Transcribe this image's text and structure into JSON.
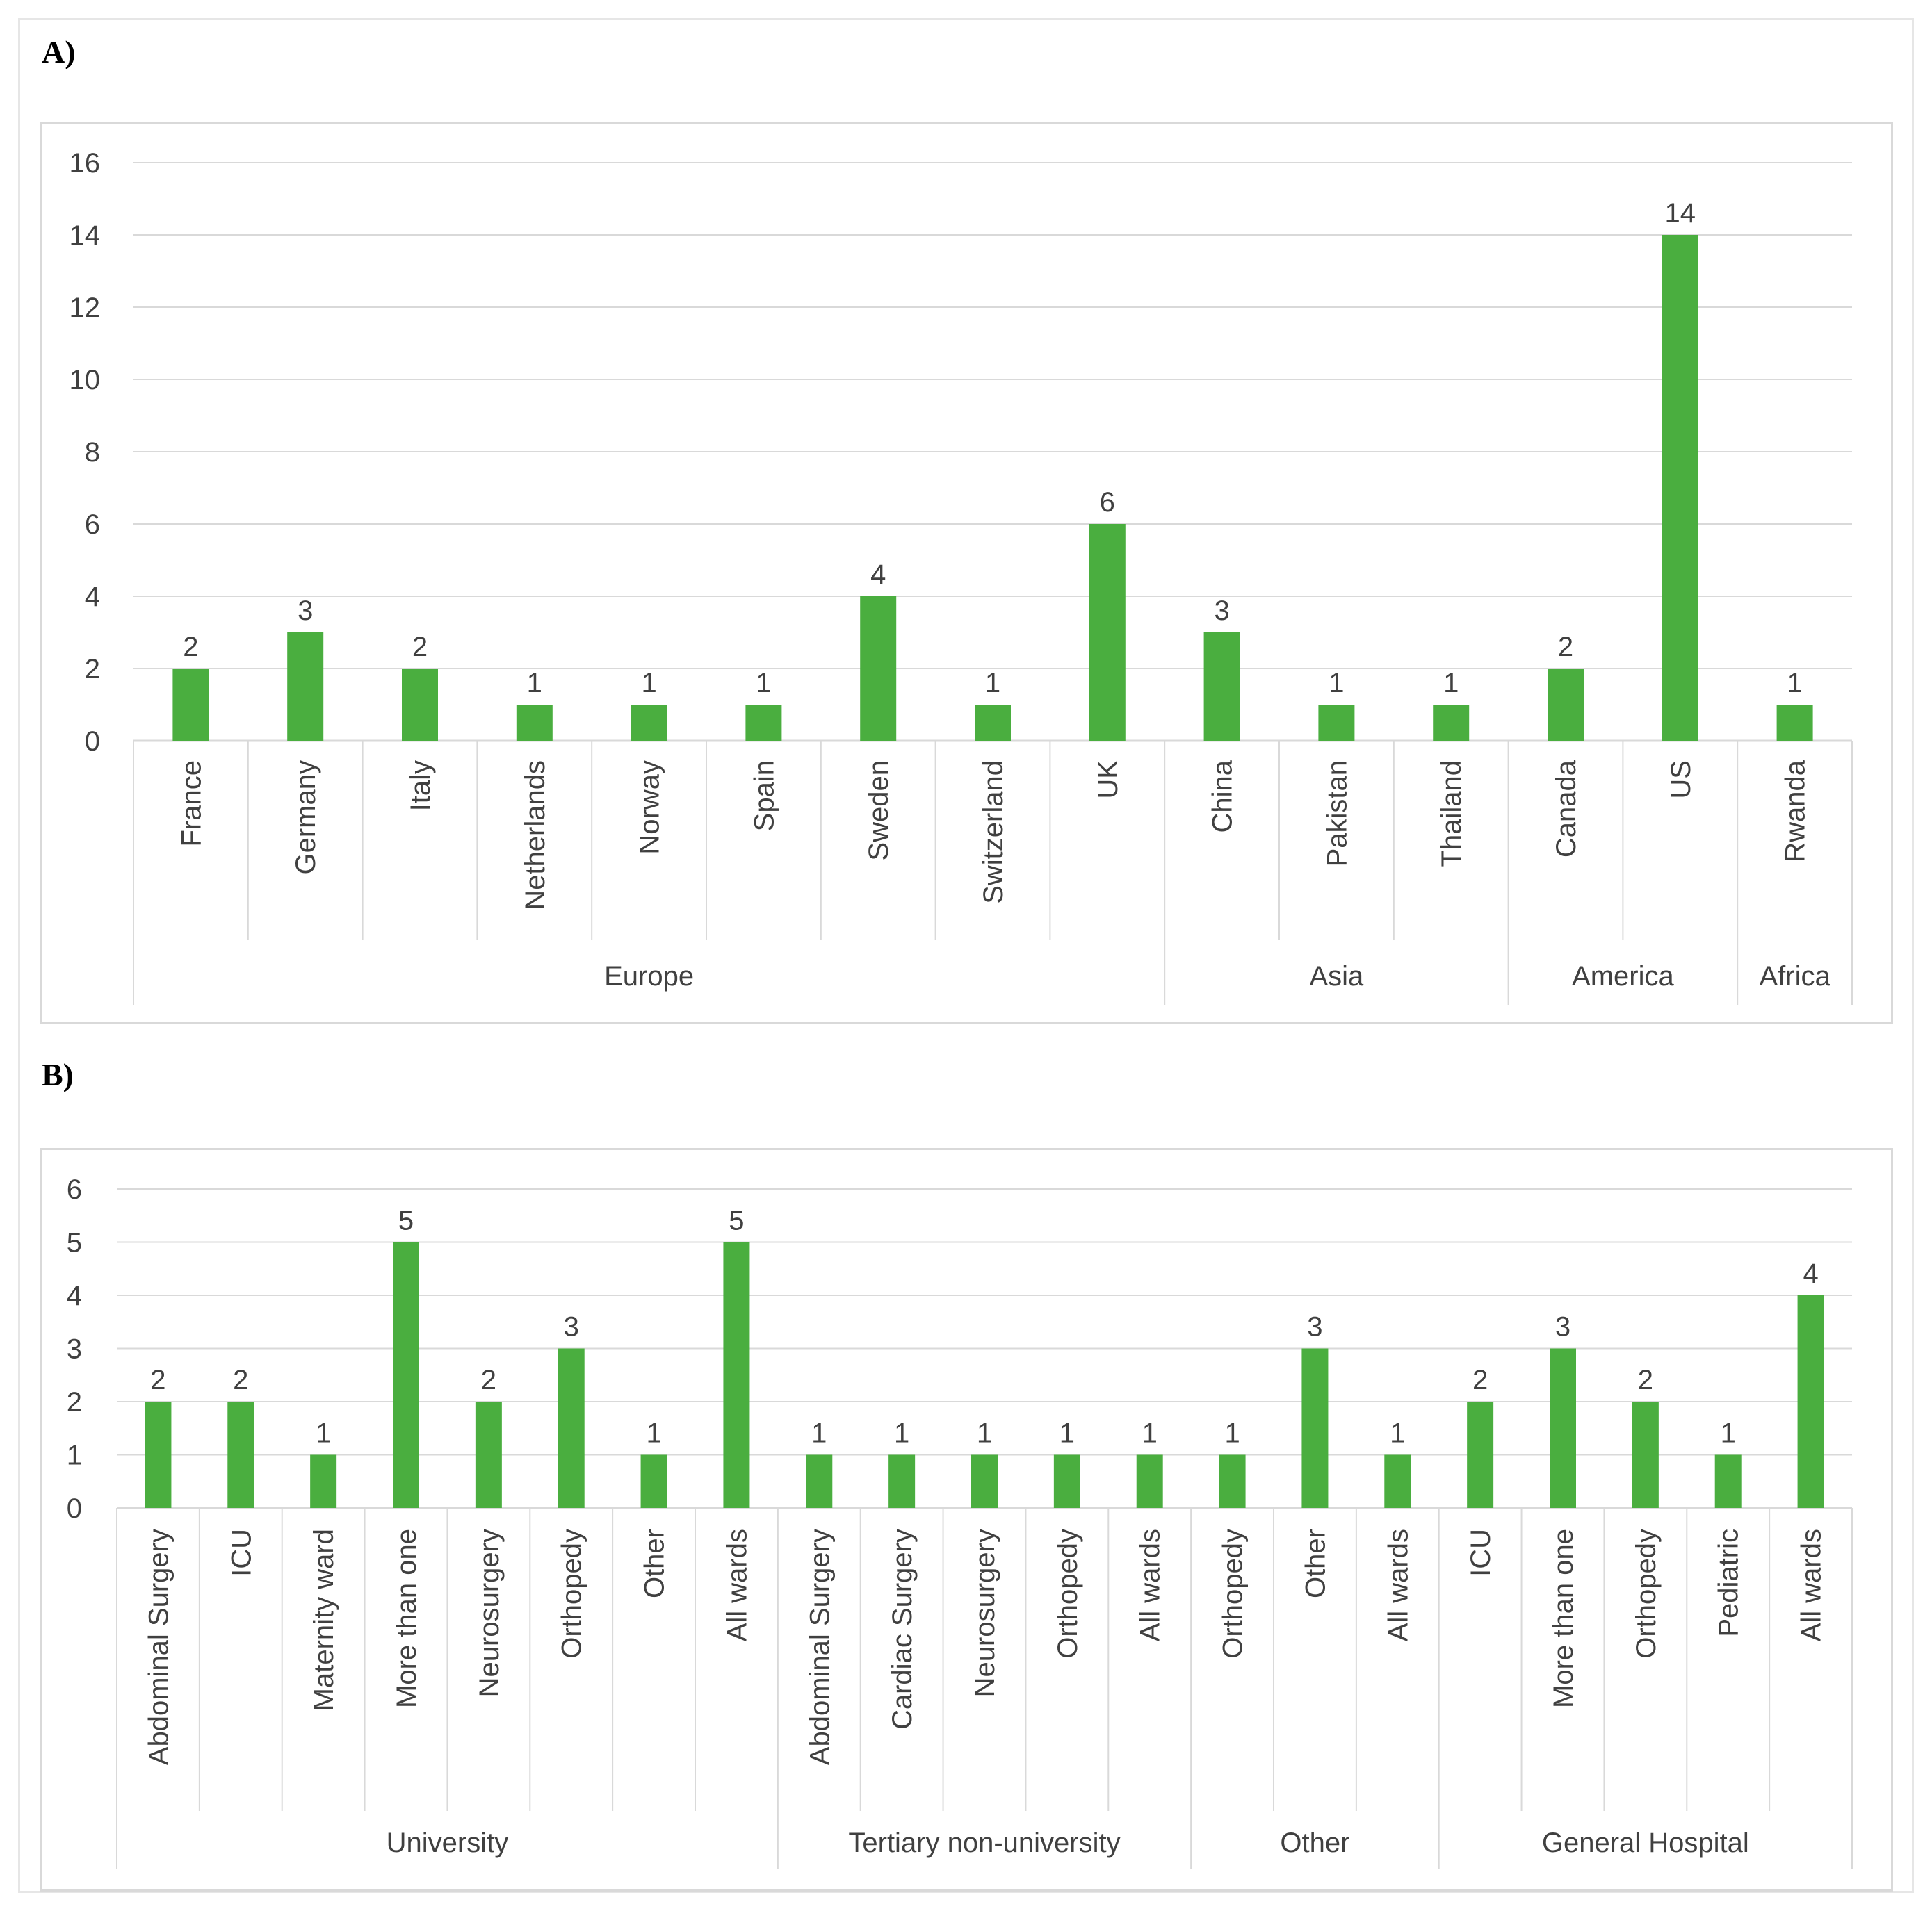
{
  "panels": {
    "a_label": "A)",
    "b_label": "B)"
  },
  "colors": {
    "bar": "#4aae3f",
    "grid": "#d9d9d9",
    "text": "#404040"
  },
  "chart_data": [
    {
      "id": "A",
      "type": "bar",
      "categories": [
        "France",
        "Germany",
        "Italy",
        "Netherlands",
        "Norway",
        "Spain",
        "Sweden",
        "Switzerland",
        "UK",
        "China",
        "Pakistan",
        "Thailand",
        "Canada",
        "US",
        "Rwanda"
      ],
      "values": [
        2,
        3,
        2,
        1,
        1,
        1,
        4,
        1,
        6,
        3,
        1,
        1,
        2,
        14,
        1
      ],
      "groups": [
        {
          "label": "Europe",
          "count": 9
        },
        {
          "label": "Asia",
          "count": 3
        },
        {
          "label": "America",
          "count": 2
        },
        {
          "label": "Africa",
          "count": 1
        }
      ],
      "ylim": [
        0,
        16
      ],
      "yticks": [
        0,
        2,
        4,
        6,
        8,
        10,
        12,
        14,
        16
      ],
      "grid": true,
      "data_labels": true
    },
    {
      "id": "B",
      "type": "bar",
      "categories": [
        "Abdominal Surgery",
        "ICU",
        "Maternity ward",
        "More than one",
        "Neurosurgery",
        "Orthopedy",
        "Other",
        "All wards",
        "Abdominal Surgery",
        "Cardiac Surgery",
        "Neurosurgery",
        "Orthopedy",
        "All wards",
        "Orthopedy",
        "Other",
        "All wards",
        "ICU",
        "More than one",
        "Orthopedy",
        "Pediatric",
        "All wards"
      ],
      "values": [
        2,
        2,
        1,
        5,
        2,
        3,
        1,
        5,
        1,
        1,
        1,
        1,
        1,
        1,
        3,
        1,
        2,
        3,
        2,
        1,
        4
      ],
      "groups": [
        {
          "label": "University",
          "count": 8
        },
        {
          "label": "Tertiary non-university",
          "count": 5
        },
        {
          "label": "Other",
          "count": 3
        },
        {
          "label": "General Hospital",
          "count": 5
        }
      ],
      "ylim": [
        0,
        6
      ],
      "yticks": [
        0,
        1,
        2,
        3,
        4,
        5,
        6
      ],
      "grid": true,
      "data_labels": true
    }
  ]
}
